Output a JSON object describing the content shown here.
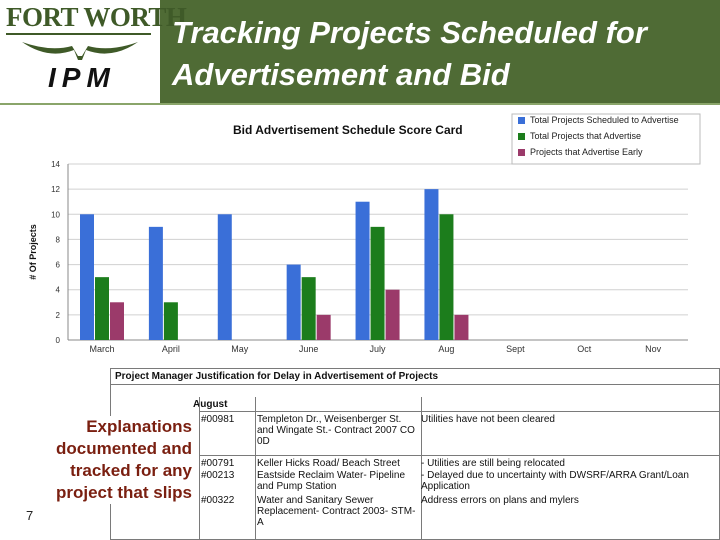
{
  "header": {
    "logo_text": "FORT WORTH",
    "ipm": "IPM",
    "title": "Tracking Projects Scheduled for Advertisement and Bid",
    "colors": {
      "band": "#4f6b35",
      "logo": "#3f5a28"
    },
    "logo_icon": "longhorn-icon"
  },
  "chart_data": {
    "type": "bar",
    "title": "Bid Advertisement Schedule Score Card",
    "xlabel": "",
    "ylabel": "# Of Projects",
    "ylim": [
      0,
      14
    ],
    "yticks": [
      0,
      2,
      4,
      6,
      8,
      10,
      12,
      14
    ],
    "grid": true,
    "legend_position": "top-right",
    "categories": [
      "March",
      "April",
      "May",
      "June",
      "July",
      "Aug",
      "Sept",
      "Oct",
      "Nov"
    ],
    "series": [
      {
        "name": "Total Projects Scheduled to Advertise",
        "color": "#3a6fd8",
        "values": [
          10,
          9,
          10,
          6,
          11,
          12,
          null,
          null,
          null
        ]
      },
      {
        "name": "Total Projects that Advertise",
        "color": "#1c7d1c",
        "values": [
          5,
          3,
          null,
          5,
          9,
          10,
          null,
          null,
          null
        ]
      },
      {
        "name": "Projects that Advertise Early",
        "color": "#9b3a6a",
        "values": [
          3,
          null,
          null,
          2,
          4,
          2,
          null,
          null,
          null
        ]
      }
    ]
  },
  "table": {
    "title": "Project Manager Justification for Delay in Advertisement of Projects",
    "month": "August",
    "rows": [
      {
        "id": "#00981",
        "project": "Templeton Dr., Weisenberger St. and Wingate St.- Contract 2007 CO 0D",
        "reason": "Utilities have not been cleared"
      },
      {
        "id": "#00791",
        "project": "Keller Hicks Road/ Beach Street",
        "reason": "- Utilities are still being relocated"
      },
      {
        "id": "#00213",
        "project": "Eastside Reclaim Water- Pipeline and Pump Station",
        "reason": "- Delayed due to uncertainty with DWSRF/ARRA Grant/Loan Application"
      },
      {
        "id": "#00322",
        "project": "Water and Sanitary Sewer Replacement- Contract 2003- STM-A",
        "reason": "Address errors on plans and mylers"
      }
    ]
  },
  "explanation": "Explanations documented and tracked for any project that slips",
  "slide_number": "7"
}
